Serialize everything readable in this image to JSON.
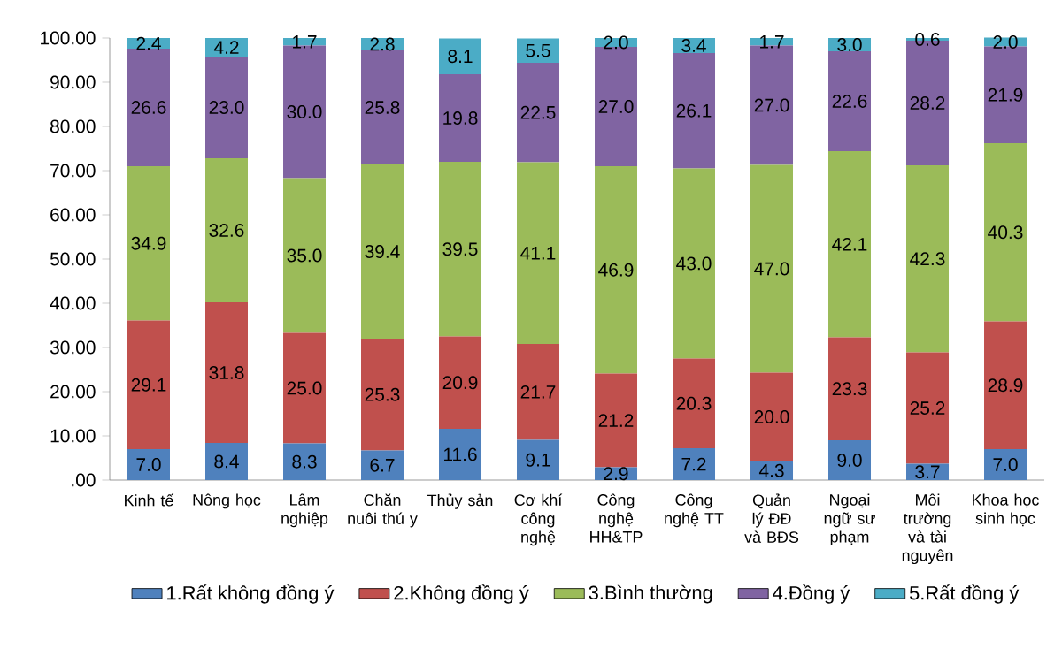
{
  "chart_data": {
    "type": "bar",
    "stacked": true,
    "categories": [
      "Kinh tế",
      "Nông học",
      "Lâm nghiệp",
      "Chăn nuôi thú y",
      "Thủy sản",
      "Cơ khí công nghệ",
      "Công nghệ HH&TP",
      "Công nghệ TT",
      "Quản lý ĐĐ và BĐS",
      "Ngoại ngữ sư phạm",
      "Môi trường và tài nguyên",
      "Khoa học sinh học"
    ],
    "series": [
      {
        "name": "1.Rất không đồng ý",
        "color": "#4f81bd",
        "values": [
          7.0,
          8.4,
          8.3,
          6.7,
          11.6,
          9.1,
          2.9,
          7.2,
          4.3,
          9.0,
          3.7,
          7.0
        ],
        "value_labels": [
          "7.0",
          "8.4",
          "8.3",
          "6.7",
          "11.6",
          "9.1",
          "2.9",
          "7.2",
          "4.3",
          "9.0",
          "3.7",
          "7.0"
        ]
      },
      {
        "name": "2.Không đồng ý",
        "color": "#c0504d",
        "values": [
          29.1,
          31.8,
          25.0,
          25.3,
          20.9,
          21.7,
          21.2,
          20.3,
          20.0,
          23.3,
          25.2,
          28.9
        ],
        "value_labels": [
          "29.1",
          "31.8",
          "25.0",
          "25.3",
          "20.9",
          "21.7",
          "21.2",
          "20.3",
          "20.0",
          "23.3",
          "25.2",
          "28.9"
        ]
      },
      {
        "name": "3.Bình thường",
        "color": "#9bbb59",
        "values": [
          34.9,
          32.6,
          35.0,
          39.4,
          39.5,
          41.1,
          46.9,
          43.0,
          47.0,
          42.1,
          42.3,
          40.3
        ],
        "value_labels": [
          "34.9",
          "32.6",
          "35.0",
          "39.4",
          "39.5",
          "41.1",
          "46.9",
          "43.0",
          "47.0",
          "42.1",
          "42.3",
          "40.3"
        ]
      },
      {
        "name": "4.Đồng ý",
        "color": "#8064a2",
        "values": [
          26.6,
          23.0,
          30.0,
          25.8,
          19.8,
          22.5,
          27.0,
          26.1,
          27.0,
          22.6,
          28.2,
          21.9
        ],
        "value_labels": [
          "26.6",
          "23.0",
          "30.0",
          "25.8",
          "19.8",
          "22.5",
          "27.0",
          "26.1",
          "27.0",
          "22.6",
          "28.2",
          "21.9"
        ]
      },
      {
        "name": "5.Rất đồng ý",
        "color": "#4bacc6",
        "values": [
          2.4,
          4.2,
          1.7,
          2.8,
          8.1,
          5.5,
          2.0,
          3.4,
          1.7,
          3.0,
          0.6,
          2.0
        ],
        "value_labels": [
          "2.4",
          "4.2",
          "1.7",
          "2.8",
          "8.1",
          "5.5",
          "2.0",
          "3.4",
          "1.7",
          "3.0",
          "0.6",
          "2.0"
        ]
      }
    ],
    "ylim": [
      0,
      100
    ],
    "yticks": [
      {
        "value": 0,
        "label": ".00"
      },
      {
        "value": 10,
        "label": "10.00"
      },
      {
        "value": 20,
        "label": "20.00"
      },
      {
        "value": 30,
        "label": "30.00"
      },
      {
        "value": 40,
        "label": "40.00"
      },
      {
        "value": 50,
        "label": "50.00"
      },
      {
        "value": 60,
        "label": "60.00"
      },
      {
        "value": 70,
        "label": "70.00"
      },
      {
        "value": 80,
        "label": "80.00"
      },
      {
        "value": 90,
        "label": "90.00"
      },
      {
        "value": 100,
        "label": "100.00"
      }
    ],
    "legend": "bottom",
    "grid": false
  }
}
